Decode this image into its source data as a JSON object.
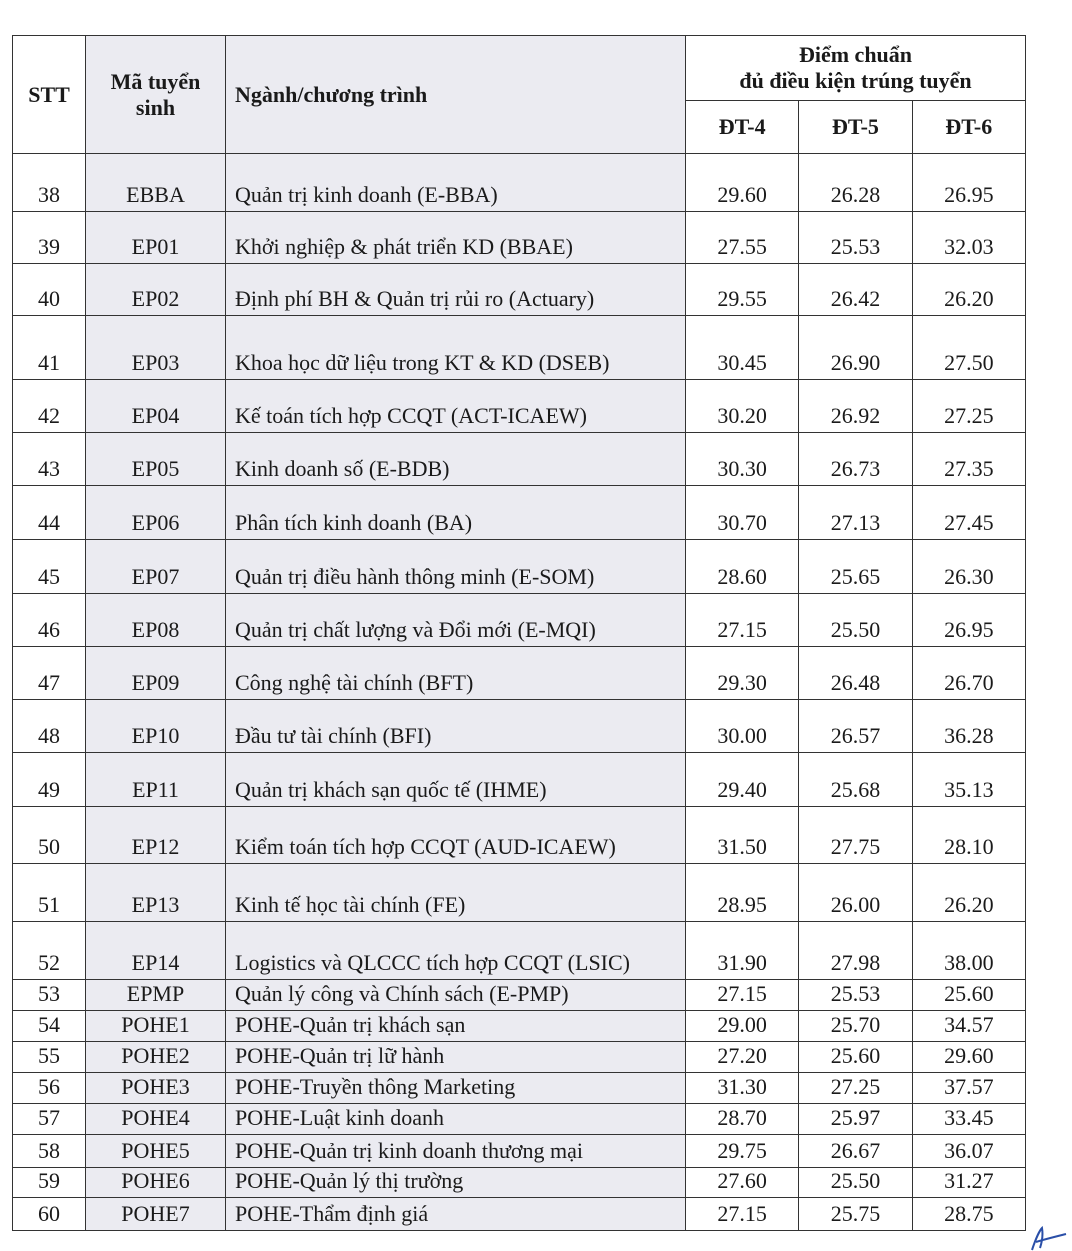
{
  "header": {
    "stt": "STT",
    "code": "Mã tuyển sinh",
    "name": "Ngành/chương trình",
    "score_group_line1": "Điểm chuẩn",
    "score_group_line2": "đủ điều kiện trúng tuyển",
    "dt4": "ĐT-4",
    "dt5": "ĐT-5",
    "dt6": "ĐT-6"
  },
  "rows": [
    {
      "stt": "38",
      "code": "EBBA",
      "name": "Quản trị kinh doanh (E-BBA)",
      "dt4": "29.60",
      "dt5": "26.28",
      "dt6": "26.95"
    },
    {
      "stt": "39",
      "code": "EP01",
      "name": "Khởi nghiệp & phát triển KD (BBAE)",
      "dt4": "27.55",
      "dt5": "25.53",
      "dt6": "32.03"
    },
    {
      "stt": "40",
      "code": "EP02",
      "name": "Định phí BH & Quản trị rủi ro (Actuary)",
      "dt4": "29.55",
      "dt5": "26.42",
      "dt6": "26.20"
    },
    {
      "stt": "41",
      "code": "EP03",
      "name": "Khoa học dữ liệu trong KT & KD (DSEB)",
      "dt4": "30.45",
      "dt5": "26.90",
      "dt6": "27.50"
    },
    {
      "stt": "42",
      "code": "EP04",
      "name": "Kế toán tích hợp CCQT (ACT-ICAEW)",
      "dt4": "30.20",
      "dt5": "26.92",
      "dt6": "27.25"
    },
    {
      "stt": "43",
      "code": "EP05",
      "name": "Kinh doanh số (E-BDB)",
      "dt4": "30.30",
      "dt5": "26.73",
      "dt6": "27.35"
    },
    {
      "stt": "44",
      "code": "EP06",
      "name": "Phân tích kinh doanh (BA)",
      "dt4": "30.70",
      "dt5": "27.13",
      "dt6": "27.45"
    },
    {
      "stt": "45",
      "code": "EP07",
      "name": "Quản trị điều hành thông minh (E-SOM)",
      "dt4": "28.60",
      "dt5": "25.65",
      "dt6": "26.30"
    },
    {
      "stt": "46",
      "code": "EP08",
      "name": "Quản trị chất lượng và Đổi mới (E-MQI)",
      "dt4": "27.15",
      "dt5": "25.50",
      "dt6": "26.95"
    },
    {
      "stt": "47",
      "code": "EP09",
      "name": "Công nghệ tài chính (BFT)",
      "dt4": "29.30",
      "dt5": "26.48",
      "dt6": "26.70"
    },
    {
      "stt": "48",
      "code": "EP10",
      "name": "Đầu tư tài chính (BFI)",
      "dt4": "30.00",
      "dt5": "26.57",
      "dt6": "36.28"
    },
    {
      "stt": "49",
      "code": "EP11",
      "name": "Quản trị khách sạn quốc tế (IHME)",
      "dt4": "29.40",
      "dt5": "25.68",
      "dt6": "35.13"
    },
    {
      "stt": "50",
      "code": "EP12",
      "name": "Kiểm toán tích hợp CCQT (AUD-ICAEW)",
      "dt4": "31.50",
      "dt5": "27.75",
      "dt6": "28.10"
    },
    {
      "stt": "51",
      "code": "EP13",
      "name": "Kinh tế học tài chính (FE)",
      "dt4": "28.95",
      "dt5": "26.00",
      "dt6": "26.20"
    },
    {
      "stt": "52",
      "code": "EP14",
      "name": "Logistics và QLCCC tích hợp CCQT (LSIC)",
      "dt4": "31.90",
      "dt5": "27.98",
      "dt6": "38.00"
    },
    {
      "stt": "53",
      "code": "EPMP",
      "name": "Quản lý công và Chính sách (E-PMP)",
      "dt4": "27.15",
      "dt5": "25.53",
      "dt6": "25.60"
    },
    {
      "stt": "54",
      "code": "POHE1",
      "name": "POHE-Quản trị khách sạn",
      "dt4": "29.00",
      "dt5": "25.70",
      "dt6": "34.57"
    },
    {
      "stt": "55",
      "code": "POHE2",
      "name": "POHE-Quản trị lữ hành",
      "dt4": "27.20",
      "dt5": "25.60",
      "dt6": "29.60"
    },
    {
      "stt": "56",
      "code": "POHE3",
      "name": "POHE-Truyền thông Marketing",
      "dt4": "31.30",
      "dt5": "27.25",
      "dt6": "37.57"
    },
    {
      "stt": "57",
      "code": "POHE4",
      "name": "POHE-Luật kinh doanh",
      "dt4": "28.70",
      "dt5": "25.97",
      "dt6": "33.45"
    },
    {
      "stt": "58",
      "code": "POHE5",
      "name": "POHE-Quản trị kinh doanh thương mại",
      "dt4": "29.75",
      "dt5": "26.67",
      "dt6": "36.07"
    },
    {
      "stt": "59",
      "code": "POHE6",
      "name": "POHE-Quản lý thị trường",
      "dt4": "27.60",
      "dt5": "25.50",
      "dt6": "31.27"
    },
    {
      "stt": "60",
      "code": "POHE7",
      "name": "POHE-Thẩm định giá",
      "dt4": "27.15",
      "dt5": "25.75",
      "dt6": "28.75"
    }
  ],
  "colors": {
    "shaded_column": "#ebebf1",
    "signature": "#2a4fa8"
  }
}
